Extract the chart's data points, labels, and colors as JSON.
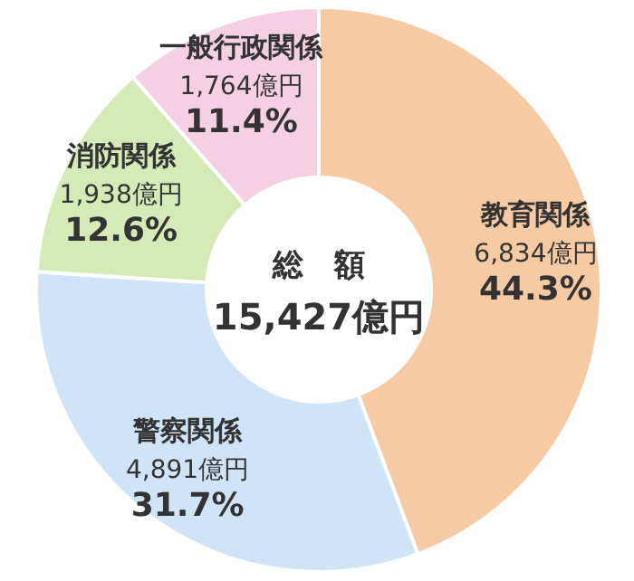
{
  "chart_data": {
    "type": "donut",
    "categories": [
      "教育関係",
      "警察関係",
      "消防関係",
      "一般行政関係"
    ],
    "values": [
      6834,
      4891,
      1938,
      1764
    ],
    "colors": [
      "#f6cba3",
      "#cfe4f6",
      "#d6eab8",
      "#f5d0e2"
    ],
    "value_labels": [
      "6,834億円\n44.3%",
      "4,891億円\n31.7%",
      "1,938億円\n12.6%",
      "1,764億円\n11.4%"
    ],
    "annotations": [
      "総　額",
      "15,427億円"
    ]
  }
}
